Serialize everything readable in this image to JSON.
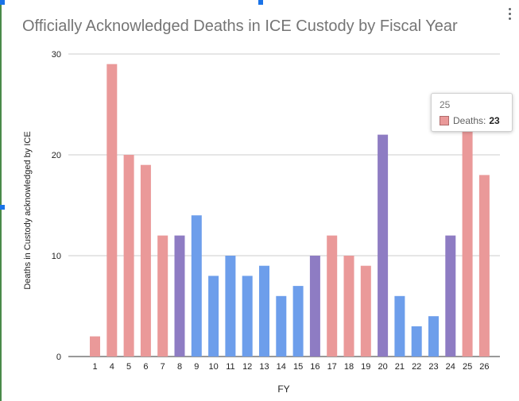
{
  "chart_data": {
    "type": "bar",
    "title": "Officially Acknowledged Deaths in ICE Custody by Fiscal Year",
    "xlabel": "FY",
    "ylabel": "Deaths in Custody acknowledged by ICE",
    "ylim": [
      0,
      30
    ],
    "yticks": [
      0,
      10,
      20,
      30
    ],
    "grid": true,
    "categories": [
      "1",
      "4",
      "5",
      "6",
      "7",
      "8",
      "9",
      "10",
      "11",
      "12",
      "13",
      "14",
      "15",
      "16",
      "17",
      "18",
      "19",
      "20",
      "21",
      "22",
      "23",
      "24",
      "25",
      "26"
    ],
    "values": [
      2,
      29,
      20,
      19,
      12,
      12,
      14,
      8,
      10,
      8,
      9,
      6,
      7,
      10,
      12,
      10,
      9,
      22,
      6,
      3,
      4,
      12,
      23,
      18
    ],
    "bar_colors": [
      "#ea9999",
      "#ea9999",
      "#ea9999",
      "#ea9999",
      "#ea9999",
      "#8e7cc3",
      "#6d9eeb",
      "#6d9eeb",
      "#6d9eeb",
      "#6d9eeb",
      "#6d9eeb",
      "#6d9eeb",
      "#6d9eeb",
      "#8e7cc3",
      "#ea9999",
      "#ea9999",
      "#ea9999",
      "#8e7cc3",
      "#6d9eeb",
      "#6d9eeb",
      "#6d9eeb",
      "#8e7cc3",
      "#ea9999",
      "#ea9999"
    ]
  },
  "tooltip": {
    "category": "25",
    "series_label": "Deaths:",
    "value": "23",
    "color": "#ea9999"
  },
  "menu": {
    "icon": "more-vert-icon"
  }
}
